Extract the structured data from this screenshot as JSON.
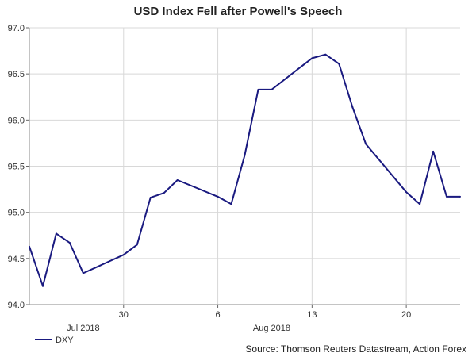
{
  "chart_data": {
    "type": "line",
    "title": "USD Index Fell after Powell's Speech",
    "xlabel": "",
    "ylabel": "",
    "ylim": [
      94.0,
      97.0
    ],
    "yticks": [
      "94.0",
      "94.5",
      "95.0",
      "95.5",
      "96.0",
      "96.5",
      "97.0"
    ],
    "xlim": [
      "2018-07-23",
      "2018-08-24"
    ],
    "xticks": [
      {
        "date": "2018-07-30",
        "label": "30"
      },
      {
        "date": "2018-08-06",
        "label": "6"
      },
      {
        "date": "2018-08-13",
        "label": "13"
      },
      {
        "date": "2018-08-20",
        "label": "20"
      }
    ],
    "month_labels": [
      {
        "date": "2018-07-27",
        "label": "Jul 2018"
      },
      {
        "date": "2018-08-10",
        "label": "Aug 2018"
      }
    ],
    "grid": true,
    "legend_position": "bottom-left",
    "series": [
      {
        "name": "DXY",
        "color": "#1a1a80",
        "x": [
          "2018-07-23",
          "2018-07-24",
          "2018-07-25",
          "2018-07-26",
          "2018-07-27",
          "2018-07-30",
          "2018-07-31",
          "2018-08-01",
          "2018-08-02",
          "2018-08-03",
          "2018-08-06",
          "2018-08-07",
          "2018-08-08",
          "2018-08-09",
          "2018-08-10",
          "2018-08-13",
          "2018-08-14",
          "2018-08-15",
          "2018-08-16",
          "2018-08-17",
          "2018-08-20",
          "2018-08-21",
          "2018-08-22",
          "2018-08-23",
          "2018-08-24"
        ],
        "values": [
          94.63,
          94.2,
          94.77,
          94.67,
          94.34,
          94.54,
          94.65,
          95.16,
          95.21,
          95.35,
          95.17,
          95.09,
          95.62,
          96.33,
          96.33,
          96.67,
          96.71,
          96.61,
          96.14,
          95.74,
          95.22,
          95.09,
          95.66,
          95.17,
          95.17
        ]
      }
    ],
    "source": "Source: Thomson Reuters Datastream, Action Forex"
  }
}
